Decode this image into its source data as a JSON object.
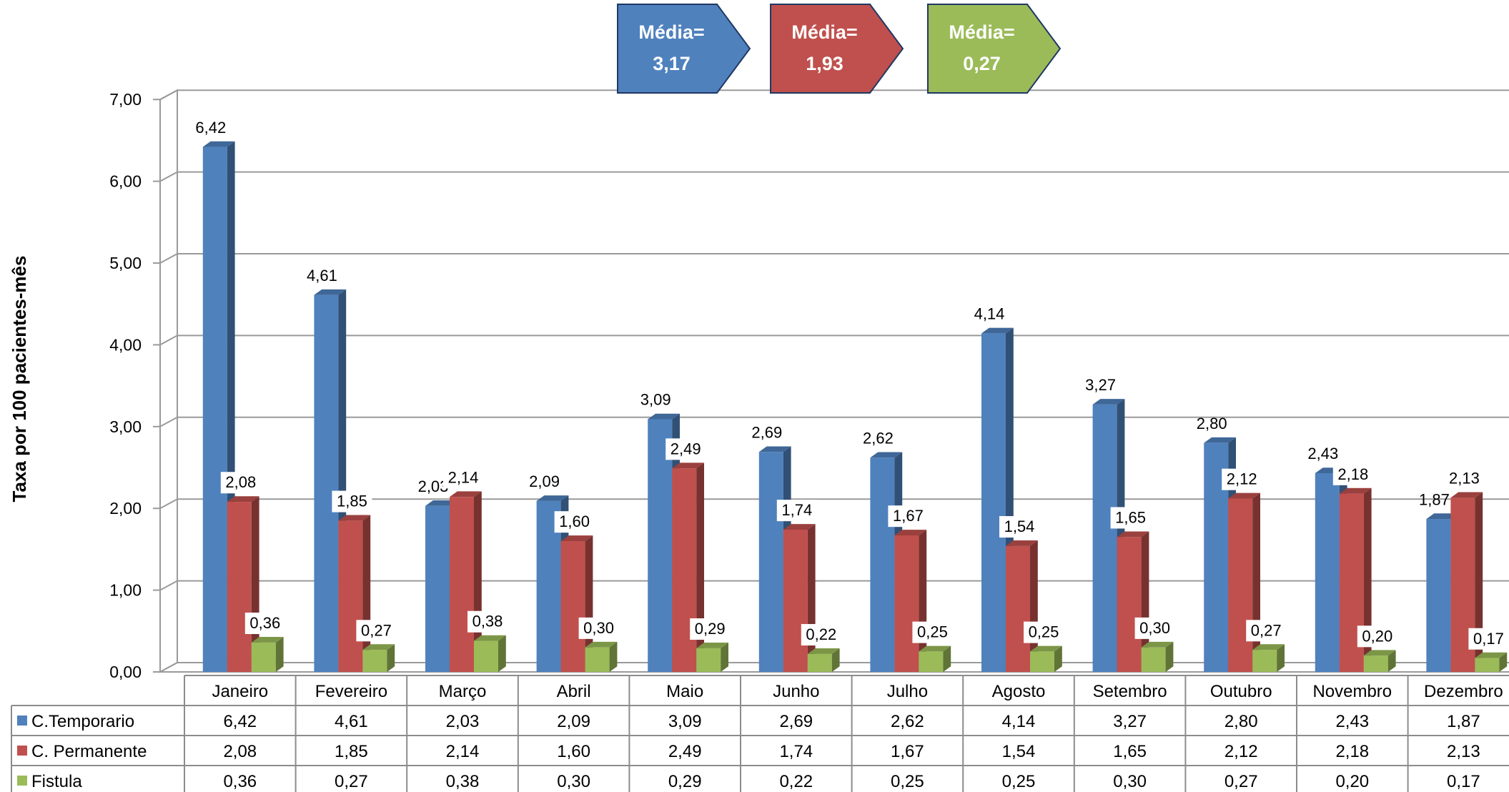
{
  "chart_data": {
    "type": "bar",
    "ylabel": "Taxa por 100 pacientes-mês",
    "ylim": [
      0,
      7
    ],
    "yticks": [
      "0,00",
      "1,00",
      "2,00",
      "3,00",
      "4,00",
      "5,00",
      "6,00",
      "7,00"
    ],
    "grid": true,
    "style": "3d-clustered-column-with-data-table",
    "categories": [
      "Janeiro",
      "Fevereiro",
      "Março",
      "Abril",
      "Maio",
      "Junho",
      "Julho",
      "Agosto",
      "Setembro",
      "Outubro",
      "Novembro",
      "Dezembro"
    ],
    "series": [
      {
        "name": "C.Temporario",
        "color": "#4f81bd",
        "values": [
          6.42,
          4.61,
          2.03,
          2.09,
          3.09,
          2.69,
          2.62,
          4.14,
          3.27,
          2.8,
          2.43,
          1.87
        ],
        "labels": [
          "6,42",
          "4,61",
          "2,03",
          "2,09",
          "3,09",
          "2,69",
          "2,62",
          "4,14",
          "3,27",
          "2,80",
          "2,43",
          "1,87"
        ]
      },
      {
        "name": "C. Permanente",
        "color": "#c0504d",
        "values": [
          2.08,
          1.85,
          2.14,
          1.6,
          2.49,
          1.74,
          1.67,
          1.54,
          1.65,
          2.12,
          2.18,
          2.13
        ],
        "labels": [
          "2,08",
          "1,85",
          "2,14",
          "1,60",
          "2,49",
          "1,74",
          "1,67",
          "1,54",
          "1,65",
          "2,12",
          "2,18",
          "2,13"
        ]
      },
      {
        "name": "Fistula",
        "color": "#9bbb59",
        "values": [
          0.36,
          0.27,
          0.38,
          0.3,
          0.29,
          0.22,
          0.25,
          0.25,
          0.3,
          0.27,
          0.2,
          0.17
        ],
        "labels": [
          "0,36",
          "0,27",
          "0,38",
          "0,30",
          "0,29",
          "0,22",
          "0,25",
          "0,25",
          "0,30",
          "0,27",
          "0,20",
          "0,17"
        ]
      }
    ],
    "averages": [
      {
        "line1": "Média=",
        "line2": "3,17",
        "color": "#4f81bd"
      },
      {
        "line1": "Média=",
        "line2": "1,93",
        "color": "#c0504d"
      },
      {
        "line1": "Média=",
        "line2": "0,27",
        "color": "#9bbb59"
      }
    ]
  }
}
